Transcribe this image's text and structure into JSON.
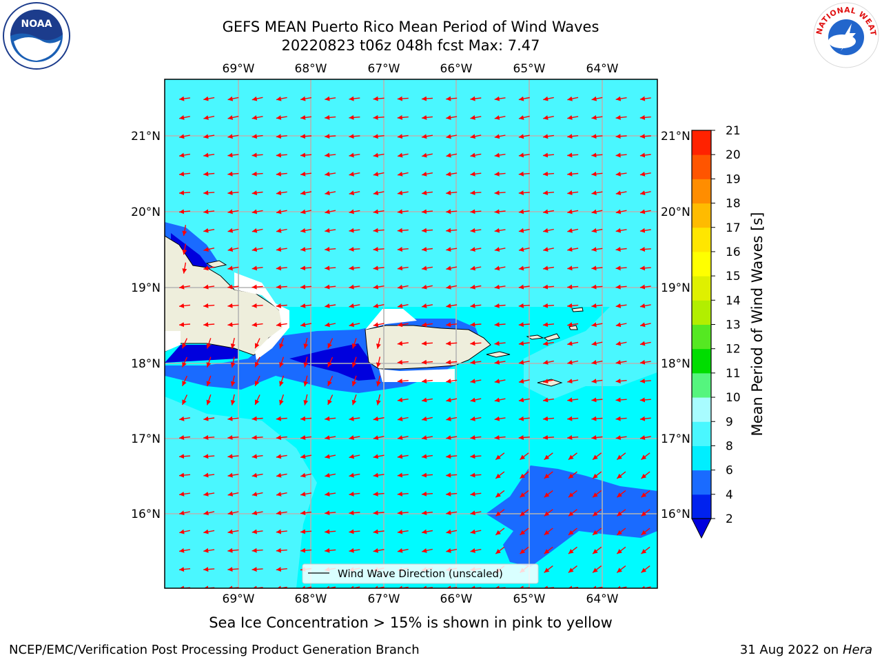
{
  "title_line1": "GEFS MEAN Puerto Rico Mean Period of Wind Waves",
  "title_line2": "20220823 t06z 048h fcst   Max: 7.47",
  "caption": "Sea Ice Concentration > 15% is shown in pink to yellow",
  "footer_left": "NCEP/EMC/Verification Post Processing Product Generation Branch",
  "footer_right_date": "31 Aug 2022 on",
  "footer_right_machine": "Hera",
  "legend_label": "Wind Wave Direction (unscaled)",
  "lon_labels": [
    "69°W",
    "68°W",
    "67°W",
    "66°W",
    "65°W",
    "64°W"
  ],
  "lat_labels": [
    "21°N",
    "20°N",
    "19°N",
    "18°N",
    "17°N",
    "16°N"
  ],
  "colorbar": {
    "label": "Mean Period of Wind Waves [s]",
    "ticks": [
      "2",
      "4",
      "6",
      "8",
      "9",
      "10",
      "11",
      "12",
      "13",
      "14",
      "15",
      "16",
      "17",
      "18",
      "19",
      "20",
      "21"
    ],
    "colors": [
      "#0022ee",
      "#1a6bff",
      "#00eeff",
      "#4af7ff",
      "#a8fcff",
      "#55f57e",
      "#00dd00",
      "#55e822",
      "#b2ee00",
      "#dff000",
      "#ffff00",
      "#ffe600",
      "#ffbb00",
      "#ff8d00",
      "#ff5500",
      "#ff2200",
      "#ff0000"
    ],
    "underflow_color": "#0000dd"
  },
  "colors": {
    "ocean": "#00fbff",
    "land": "#eeeedc",
    "arrow": "#ff0000",
    "grid": "#b4b4b4"
  },
  "logos": {
    "noaa_text": "NOAA",
    "nws_text": "NATIONAL WEATHER SERVICE"
  }
}
